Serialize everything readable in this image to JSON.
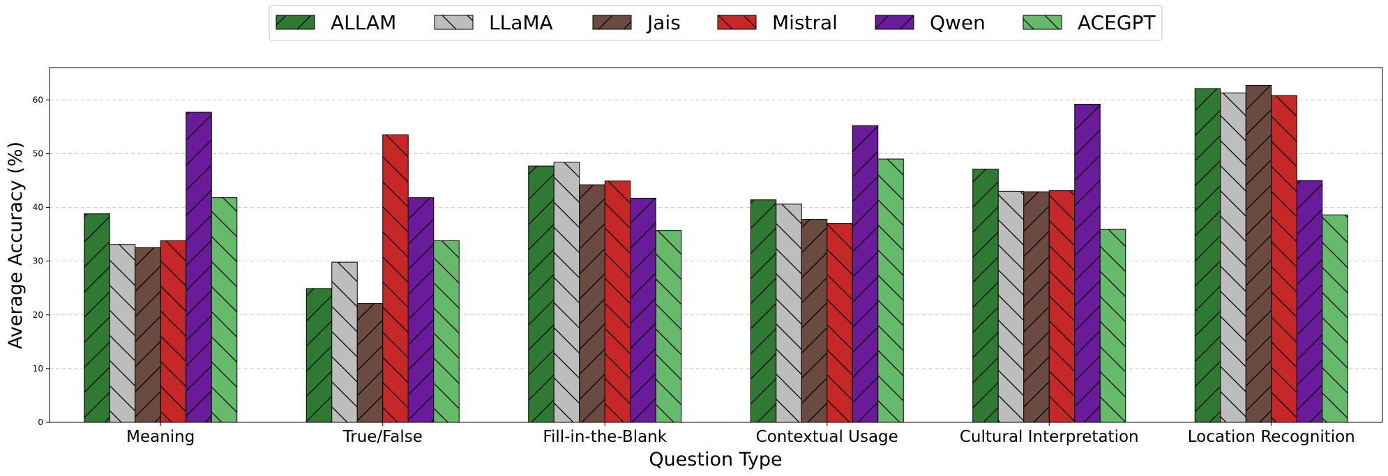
{
  "chart_data": {
    "type": "bar",
    "title": "",
    "xlabel": "Question Type",
    "ylabel": "Average Accuracy (%)",
    "ylim": [
      0,
      66
    ],
    "yticks": [
      0,
      10,
      20,
      30,
      40,
      50,
      60
    ],
    "grid": "horizontal dashed",
    "legend_position": "top-center",
    "categories": [
      "Meaning",
      "True/False",
      "Fill-in-the-Blank",
      "Contextual Usage",
      "Cultural Interpretation",
      "Location Recognition"
    ],
    "series": [
      {
        "name": "ALLAM",
        "color": "#2e7a33",
        "hatch": "forward",
        "values": [
          38.8,
          24.9,
          47.7,
          41.4,
          47.1,
          62.1
        ]
      },
      {
        "name": "LLaMA",
        "color": "#bdbdbd",
        "hatch": "back",
        "values": [
          33.1,
          29.8,
          48.4,
          40.6,
          43.0,
          61.3
        ]
      },
      {
        "name": "Jais",
        "color": "#6b4a40",
        "hatch": "forward",
        "values": [
          32.5,
          22.1,
          44.2,
          37.8,
          42.9,
          62.7
        ]
      },
      {
        "name": "Mistral",
        "color": "#c62828",
        "hatch": "back",
        "values": [
          33.8,
          53.5,
          44.9,
          37.0,
          43.1,
          60.8
        ]
      },
      {
        "name": "Qwen",
        "color": "#6a1b9a",
        "hatch": "forward",
        "values": [
          57.7,
          41.8,
          41.7,
          55.2,
          59.2,
          45.0
        ]
      },
      {
        "name": "ACEGPT",
        "color": "#66bb6a",
        "hatch": "back",
        "values": [
          41.8,
          33.8,
          35.7,
          49.0,
          35.9,
          38.6
        ]
      }
    ]
  }
}
